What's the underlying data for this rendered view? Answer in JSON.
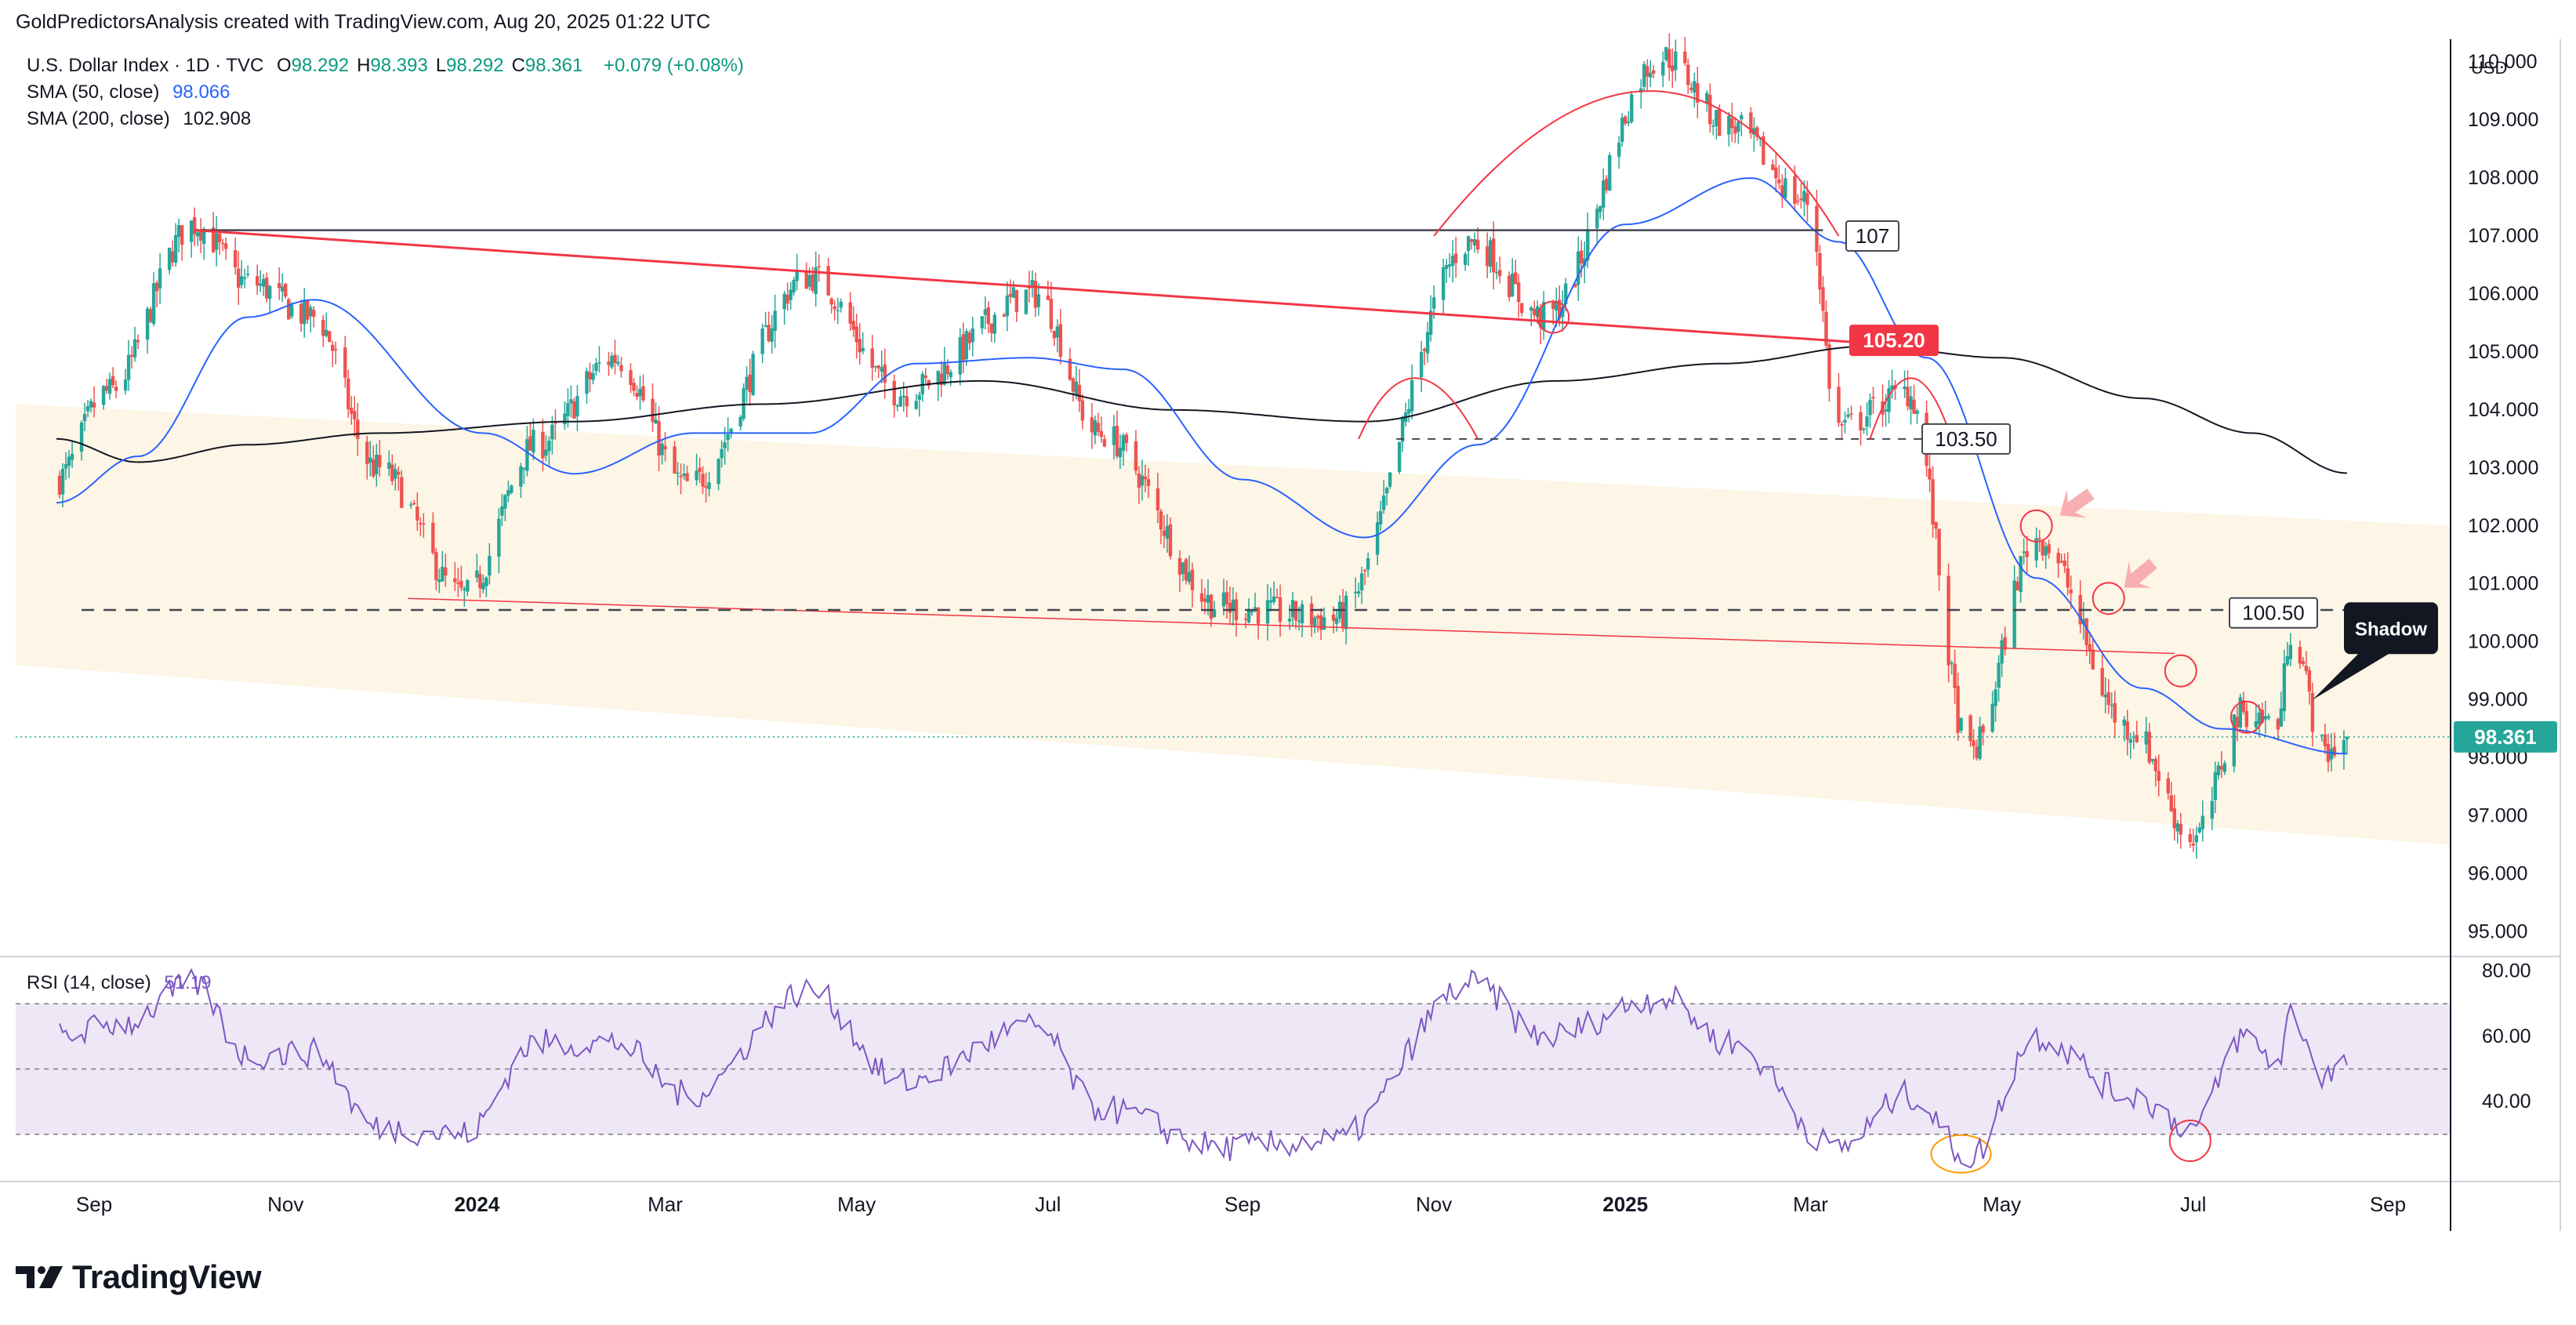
{
  "header": {
    "attribution": "GoldPredictorsAnalysis created with TradingView.com, Aug 20, 2025 01:22 UTC"
  },
  "legend": {
    "symbol": "U.S. Dollar Index · 1D · TVC",
    "ohlc": [
      {
        "k": "O",
        "v": "98.292"
      },
      {
        "k": "H",
        "v": "98.393"
      },
      {
        "k": "L",
        "v": "98.292"
      },
      {
        "k": "C",
        "v": "98.361"
      }
    ],
    "change": "+0.079 (+0.08%)",
    "sma50_label": "SMA (50, close)",
    "sma50_value": "98.066",
    "sma200_label": "SMA (200, close)",
    "sma200_value": "102.908"
  },
  "rsi_legend": {
    "label": "RSI (14, close)",
    "value": "51.19"
  },
  "footer": {
    "brand": "TradingView"
  },
  "colors": {
    "up": "#26a69a",
    "down": "#ef5350",
    "sma50": "#2962ff",
    "sma200": "#131722",
    "rsi": "#7e57c2",
    "rsi_band": "#ede7f6",
    "channel": "#fdf3e1",
    "red_line": "#f23645",
    "price_label": "#26a69a"
  },
  "chart_data": [
    {
      "type": "candlestick",
      "title": "U.S. Dollar Index · 1D · TVC",
      "currency": "USD",
      "ylim": [
        94.6,
        110.8
      ],
      "y_ticks": [
        "110.000",
        "109.000",
        "108.000",
        "107.000",
        "106.000",
        "105.000",
        "104.000",
        "103.000",
        "102.000",
        "101.000",
        "100.000",
        "99.000",
        "98.000",
        "97.000",
        "96.000",
        "95.000"
      ],
      "x_ticks": [
        "Sep",
        "Nov",
        "2024",
        "Mar",
        "May",
        "Jul",
        "Sep",
        "Nov",
        "2025",
        "Mar",
        "May",
        "Jul",
        "Sep"
      ],
      "last_price": "98.361",
      "price_anchors": [
        [
          "2023-08-20",
          102.8
        ],
        [
          "2023-09-05",
          104.3
        ],
        [
          "2023-10-03",
          107.2
        ],
        [
          "2023-10-20",
          106.2
        ],
        [
          "2023-11-10",
          105.6
        ],
        [
          "2023-11-30",
          103.0
        ],
        [
          "2023-12-28",
          100.8
        ],
        [
          "2024-01-20",
          103.4
        ],
        [
          "2024-02-14",
          104.9
        ],
        [
          "2024-03-08",
          102.7
        ],
        [
          "2024-04-16",
          106.3
        ],
        [
          "2024-05-15",
          104.3
        ],
        [
          "2024-06-27",
          106.0
        ],
        [
          "2024-07-17",
          103.6
        ],
        [
          "2024-08-26",
          100.6
        ],
        [
          "2024-09-30",
          100.4
        ],
        [
          "2024-11-13",
          106.9
        ],
        [
          "2024-12-06",
          105.6
        ],
        [
          "2025-01-13",
          110.1
        ],
        [
          "2025-02-03",
          108.9
        ],
        [
          "2025-02-28",
          107.6
        ],
        [
          "2025-03-10",
          103.7
        ],
        [
          "2025-04-01",
          104.3
        ],
        [
          "2025-04-21",
          98.1
        ],
        [
          "2025-05-12",
          101.8
        ],
        [
          "2025-06-11",
          98.5
        ],
        [
          "2025-07-01",
          96.6
        ],
        [
          "2025-07-17",
          98.8
        ],
        [
          "2025-07-28",
          98.6
        ],
        [
          "2025-08-01",
          100.2
        ],
        [
          "2025-08-12",
          98.1
        ],
        [
          "2025-08-19",
          98.36
        ]
      ],
      "sma50_anchors": [
        [
          "2023-08-20",
          102.4
        ],
        [
          "2023-09-15",
          103.2
        ],
        [
          "2023-10-20",
          105.6
        ],
        [
          "2023-11-10",
          105.9
        ],
        [
          "2024-01-03",
          103.6
        ],
        [
          "2024-02-01",
          102.9
        ],
        [
          "2024-03-10",
          103.6
        ],
        [
          "2024-04-16",
          103.6
        ],
        [
          "2024-05-20",
          104.8
        ],
        [
          "2024-06-25",
          104.9
        ],
        [
          "2024-07-25",
          104.7
        ],
        [
          "2024-09-01",
          102.8
        ],
        [
          "2024-10-10",
          101.8
        ],
        [
          "2024-11-15",
          103.4
        ],
        [
          "2025-01-01",
          107.2
        ],
        [
          "2025-02-10",
          108.0
        ],
        [
          "2025-03-10",
          106.9
        ],
        [
          "2025-04-07",
          104.9
        ],
        [
          "2025-05-12",
          101.1
        ],
        [
          "2025-06-15",
          99.2
        ],
        [
          "2025-07-10",
          98.5
        ],
        [
          "2025-08-19",
          98.07
        ]
      ],
      "sma200_anchors": [
        [
          "2023-08-20",
          103.5
        ],
        [
          "2023-09-15",
          103.1
        ],
        [
          "2023-10-20",
          103.4
        ],
        [
          "2023-12-01",
          103.6
        ],
        [
          "2024-02-01",
          103.8
        ],
        [
          "2024-04-01",
          104.1
        ],
        [
          "2024-06-10",
          104.5
        ],
        [
          "2024-08-10",
          104.0
        ],
        [
          "2024-10-10",
          103.8
        ],
        [
          "2024-12-10",
          104.5
        ],
        [
          "2025-02-01",
          104.8
        ],
        [
          "2025-03-20",
          105.1
        ],
        [
          "2025-05-01",
          104.9
        ],
        [
          "2025-06-15",
          104.2
        ],
        [
          "2025-07-20",
          103.6
        ],
        [
          "2025-08-19",
          102.91
        ]
      ],
      "annotations": [
        {
          "kind": "level",
          "label": "107",
          "value": 107
        },
        {
          "kind": "level",
          "label": "105.20",
          "value": 105.2
        },
        {
          "kind": "level",
          "label": "103.50",
          "value": 103.5
        },
        {
          "kind": "level",
          "label": "100.50",
          "value": 100.5
        },
        {
          "kind": "callout",
          "label": "Shadow"
        }
      ]
    },
    {
      "type": "line",
      "title": "RSI (14, close)",
      "ylim": [
        16,
        84
      ],
      "y_ticks": [
        "80.00",
        "60.00",
        "40.00"
      ],
      "bands": [
        70,
        50,
        30
      ],
      "last_value": 51.19,
      "anchors": [
        [
          "2023-08-20",
          60
        ],
        [
          "2023-09-10",
          64
        ],
        [
          "2023-10-03",
          76
        ],
        [
          "2023-10-20",
          54
        ],
        [
          "2023-11-10",
          55
        ],
        [
          "2023-11-30",
          32
        ],
        [
          "2023-12-28",
          30
        ],
        [
          "2024-01-20",
          58
        ],
        [
          "2024-02-14",
          58
        ],
        [
          "2024-03-08",
          42
        ],
        [
          "2024-04-16",
          74
        ],
        [
          "2024-05-15",
          46
        ],
        [
          "2024-06-27",
          63
        ],
        [
          "2024-07-17",
          38
        ],
        [
          "2024-08-26",
          26
        ],
        [
          "2024-09-30",
          28
        ],
        [
          "2024-11-13",
          76
        ],
        [
          "2024-12-06",
          60
        ],
        [
          "2025-01-13",
          72
        ],
        [
          "2025-02-03",
          58
        ],
        [
          "2025-03-10",
          26
        ],
        [
          "2025-04-01",
          42
        ],
        [
          "2025-04-21",
          23
        ],
        [
          "2025-05-12",
          60
        ],
        [
          "2025-06-11",
          42
        ],
        [
          "2025-07-01",
          32
        ],
        [
          "2025-07-17",
          60
        ],
        [
          "2025-07-28",
          52
        ],
        [
          "2025-08-01",
          67
        ],
        [
          "2025-08-12",
          48
        ],
        [
          "2025-08-19",
          51.19
        ]
      ]
    }
  ]
}
